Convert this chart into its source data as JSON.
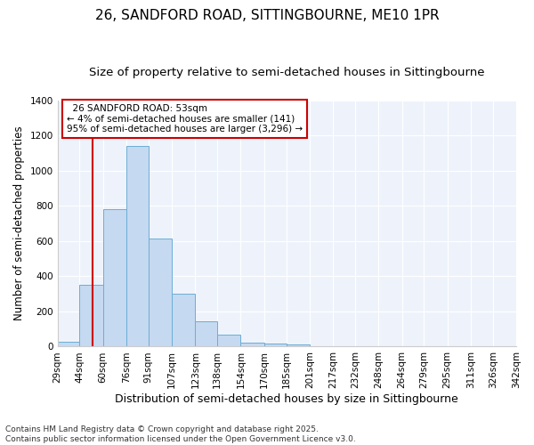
{
  "title": "26, SANDFORD ROAD, SITTINGBOURNE, ME10 1PR",
  "subtitle": "Size of property relative to semi-detached houses in Sittingbourne",
  "xlabel": "Distribution of semi-detached houses by size in Sittingbourne",
  "ylabel": "Number of semi-detached properties",
  "footnote1": "Contains HM Land Registry data © Crown copyright and database right 2025.",
  "footnote2": "Contains public sector information licensed under the Open Government Licence v3.0.",
  "annotation_title": "26 SANDFORD ROAD: 53sqm",
  "annotation_line1": "← 4% of semi-detached houses are smaller (141)",
  "annotation_line2": "95% of semi-detached houses are larger (3,296) →",
  "subject_size": 53,
  "bin_edges": [
    29,
    44,
    60,
    76,
    91,
    107,
    123,
    138,
    154,
    170,
    185,
    201,
    217,
    232,
    248,
    264,
    279,
    295,
    311,
    326,
    342
  ],
  "bar_heights": [
    30,
    350,
    780,
    1140,
    615,
    300,
    145,
    70,
    25,
    15,
    10,
    0,
    0,
    0,
    0,
    0,
    0,
    0,
    0,
    0
  ],
  "bar_color": "#c5d9f0",
  "bar_edge_color": "#6baed6",
  "vline_color": "#cc0000",
  "background_color": "#ffffff",
  "plot_bg_color": "#eef3fb",
  "grid_color": "#ffffff",
  "ylim": [
    0,
    1400
  ],
  "yticks": [
    0,
    200,
    400,
    600,
    800,
    1000,
    1200,
    1400
  ],
  "title_fontsize": 11,
  "subtitle_fontsize": 9.5,
  "xlabel_fontsize": 9,
  "ylabel_fontsize": 8.5,
  "tick_fontsize": 7.5,
  "footnote_fontsize": 6.5,
  "annotation_fontsize": 7.5
}
